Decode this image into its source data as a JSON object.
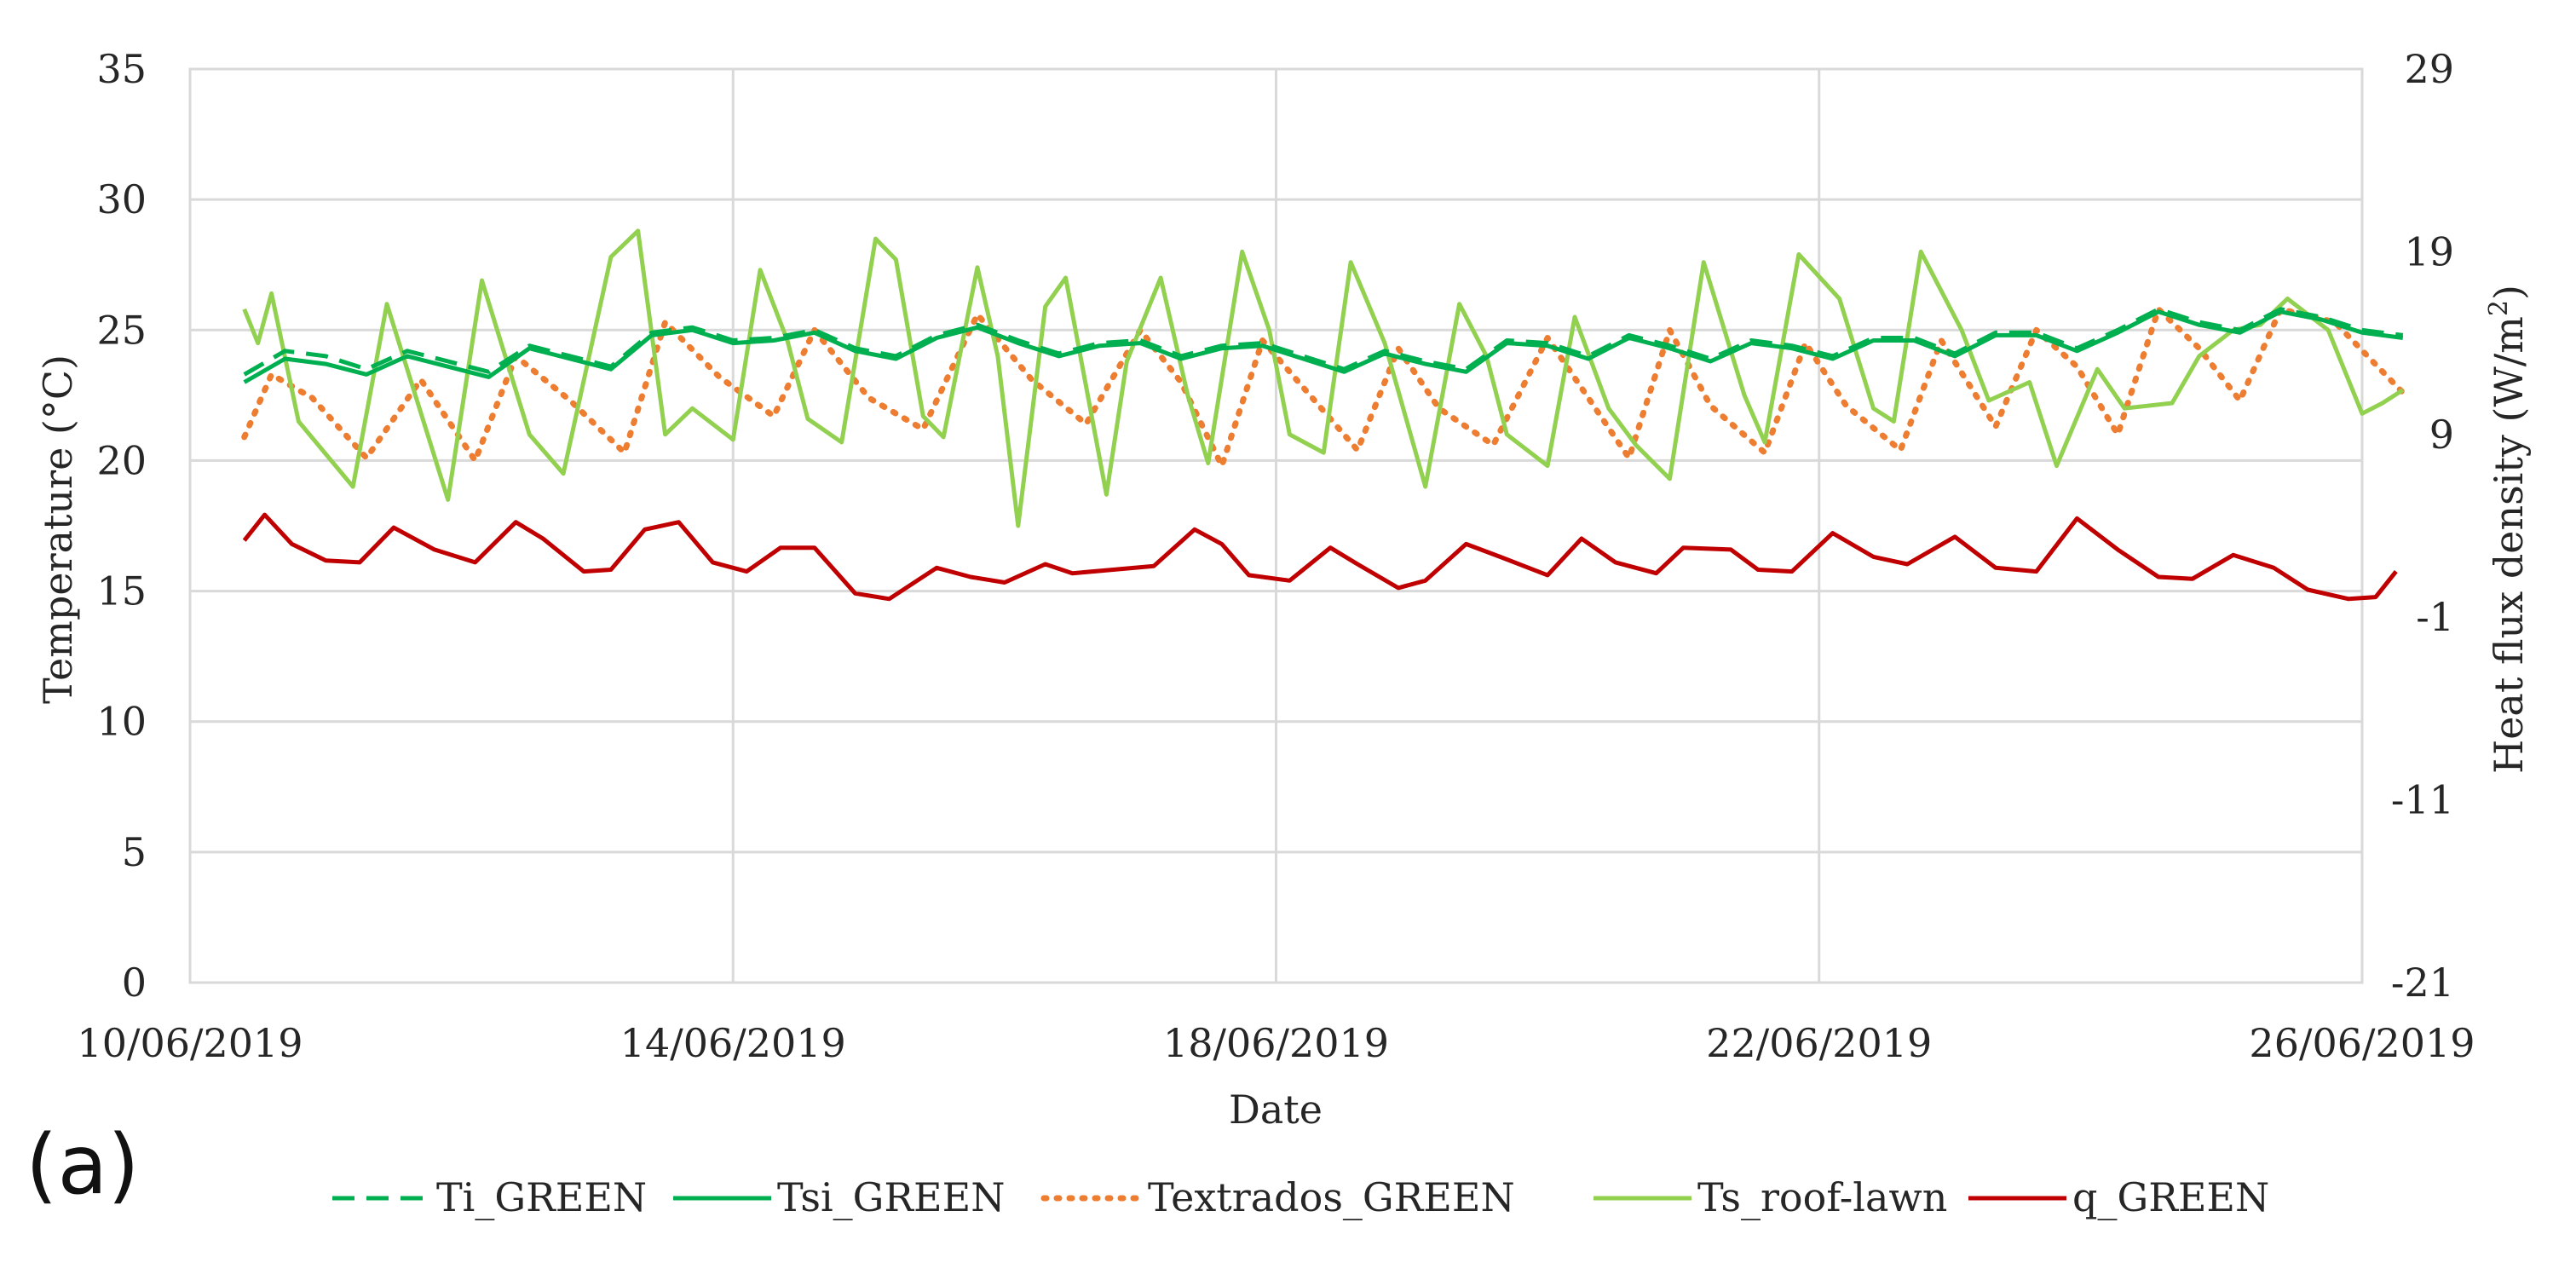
{
  "panel_label": "(a)",
  "chart_data": {
    "type": "line",
    "title": "",
    "xlabel": "Date",
    "ylabel": "Temperature (°C)",
    "y2label_main": "Heat flux density (W/m",
    "y2label_sup": "2",
    "y2label_end": ")",
    "x_range_days": [
      0,
      16
    ],
    "ylim": [
      0,
      35
    ],
    "y2lim": [
      -21,
      29
    ],
    "grid": true,
    "legend_position": "bottom",
    "x_ticks": [
      {
        "day": 0,
        "label": "10/06/2019"
      },
      {
        "day": 4,
        "label": "14/06/2019"
      },
      {
        "day": 8,
        "label": "18/06/2019"
      },
      {
        "day": 12,
        "label": "22/06/2019"
      },
      {
        "day": 16,
        "label": "26/06/2019"
      }
    ],
    "y_ticks": [
      0,
      5,
      10,
      15,
      20,
      25,
      30,
      35
    ],
    "y2_ticks": [
      -21,
      -11,
      -1,
      9,
      19,
      29
    ],
    "series": [
      {
        "name": "Ti_GREEN",
        "axis": "left",
        "color": "#00b050",
        "style": "dashed",
        "x": [
          0.4,
          0.7,
          1.0,
          1.3,
          1.6,
          1.9,
          2.2,
          2.5,
          2.8,
          3.1,
          3.4,
          3.7,
          4.0,
          4.3,
          4.6,
          4.9,
          5.2,
          5.5,
          5.8,
          6.1,
          6.4,
          6.7,
          7.0,
          7.3,
          7.6,
          7.9,
          8.2,
          8.5,
          8.8,
          9.1,
          9.4,
          9.7,
          10.0,
          10.3,
          10.6,
          10.9,
          11.2,
          11.5,
          11.8,
          12.1,
          12.4,
          12.7,
          13.0,
          13.3,
          13.6,
          13.9,
          14.2,
          14.5,
          14.8,
          15.1,
          15.4,
          15.7,
          16.0,
          16.3
        ],
        "values": [
          23.3,
          24.2,
          24.0,
          23.5,
          24.2,
          23.8,
          23.4,
          24.4,
          24.0,
          23.6,
          24.9,
          25.1,
          24.6,
          24.7,
          25.0,
          24.3,
          24.0,
          24.8,
          25.2,
          24.6,
          24.1,
          24.5,
          24.6,
          24.0,
          24.4,
          24.5,
          24.0,
          23.5,
          24.2,
          23.8,
          23.5,
          24.6,
          24.5,
          24.0,
          24.8,
          24.4,
          23.9,
          24.6,
          24.4,
          24.0,
          24.7,
          24.7,
          24.1,
          24.9,
          24.9,
          24.3,
          25.0,
          25.8,
          25.3,
          25.0,
          25.8,
          25.5,
          25.0,
          24.8
        ]
      },
      {
        "name": "Tsi_GREEN",
        "axis": "left",
        "color": "#00b050",
        "style": "solid",
        "x": [
          0.4,
          0.7,
          1.0,
          1.3,
          1.6,
          1.9,
          2.2,
          2.5,
          2.8,
          3.1,
          3.4,
          3.7,
          4.0,
          4.3,
          4.6,
          4.9,
          5.2,
          5.5,
          5.8,
          6.1,
          6.4,
          6.7,
          7.0,
          7.3,
          7.6,
          7.9,
          8.2,
          8.5,
          8.8,
          9.1,
          9.4,
          9.7,
          10.0,
          10.3,
          10.6,
          10.9,
          11.2,
          11.5,
          11.8,
          12.1,
          12.4,
          12.7,
          13.0,
          13.3,
          13.6,
          13.9,
          14.2,
          14.5,
          14.8,
          15.1,
          15.4,
          15.7,
          16.0,
          16.3
        ],
        "values": [
          23.0,
          23.9,
          23.7,
          23.3,
          24.0,
          23.6,
          23.2,
          24.3,
          23.9,
          23.5,
          24.8,
          25.0,
          24.5,
          24.6,
          24.9,
          24.2,
          23.9,
          24.7,
          25.1,
          24.5,
          24.0,
          24.4,
          24.5,
          23.9,
          24.3,
          24.4,
          23.9,
          23.4,
          24.1,
          23.7,
          23.4,
          24.5,
          24.4,
          23.9,
          24.7,
          24.3,
          23.8,
          24.5,
          24.3,
          23.9,
          24.6,
          24.6,
          24.0,
          24.8,
          24.8,
          24.2,
          24.9,
          25.7,
          25.2,
          24.9,
          25.7,
          25.4,
          24.9,
          24.7
        ]
      },
      {
        "name": "Textrados_GREEN",
        "axis": "left",
        "color": "#ed7d31",
        "style": "dotted",
        "x": [
          0.4,
          0.6,
          0.9,
          1.3,
          1.7,
          2.1,
          2.4,
          2.8,
          3.2,
          3.5,
          3.9,
          4.3,
          4.6,
          5.0,
          5.4,
          5.8,
          6.2,
          6.6,
          7.0,
          7.3,
          7.6,
          7.9,
          8.2,
          8.6,
          8.9,
          9.2,
          9.6,
          10.0,
          10.3,
          10.6,
          10.9,
          11.2,
          11.6,
          11.9,
          12.2,
          12.6,
          12.9,
          13.3,
          13.6,
          13.9,
          14.2,
          14.5,
          14.8,
          15.1,
          15.4,
          15.8,
          16.3
        ],
        "values": [
          20.9,
          23.3,
          22.4,
          20.1,
          23.1,
          20.0,
          24.0,
          22.3,
          20.3,
          25.3,
          23.2,
          21.7,
          25.0,
          22.4,
          21.2,
          25.6,
          23.1,
          21.4,
          25.0,
          23.0,
          19.8,
          24.6,
          22.8,
          20.4,
          24.3,
          22.0,
          20.6,
          24.7,
          22.4,
          20.1,
          25.0,
          22.1,
          20.3,
          24.5,
          22.1,
          20.4,
          24.6,
          21.3,
          25.0,
          23.6,
          21.0,
          25.8,
          24.3,
          22.3,
          25.8,
          25.3,
          22.6
        ]
      },
      {
        "name": "Ts_roof-lawn",
        "axis": "left",
        "color": "#92d050",
        "style": "solid",
        "x": [
          0.4,
          0.5,
          0.6,
          0.8,
          1.2,
          1.45,
          1.6,
          1.9,
          2.15,
          2.5,
          2.75,
          3.1,
          3.3,
          3.5,
          3.7,
          4.0,
          4.2,
          4.4,
          4.55,
          4.8,
          5.05,
          5.2,
          5.4,
          5.55,
          5.8,
          5.95,
          6.1,
          6.3,
          6.45,
          6.75,
          6.9,
          7.15,
          7.35,
          7.5,
          7.75,
          7.95,
          8.1,
          8.35,
          8.55,
          8.8,
          9.1,
          9.35,
          9.55,
          9.7,
          10.0,
          10.2,
          10.45,
          10.65,
          10.9,
          11.15,
          11.45,
          11.6,
          11.85,
          12.15,
          12.4,
          12.55,
          12.75,
          13.05,
          13.25,
          13.55,
          13.75,
          14.05,
          14.25,
          14.6,
          14.8,
          15.05,
          15.25,
          15.45,
          15.75,
          16.0,
          16.15,
          16.3
        ],
        "values": [
          25.8,
          24.5,
          26.4,
          21.5,
          19.0,
          26.0,
          23.5,
          18.5,
          26.9,
          21.0,
          19.5,
          27.8,
          28.8,
          21.0,
          22.0,
          20.8,
          27.3,
          24.6,
          21.6,
          20.7,
          28.5,
          27.7,
          21.7,
          20.9,
          27.4,
          24.0,
          17.5,
          25.9,
          27.0,
          18.7,
          23.8,
          27.0,
          22.5,
          19.9,
          28.0,
          25.0,
          21.0,
          20.3,
          27.6,
          24.5,
          19.0,
          26.0,
          24.0,
          21.0,
          19.8,
          25.5,
          22.0,
          20.6,
          19.3,
          27.6,
          22.5,
          20.7,
          27.9,
          26.2,
          22.0,
          21.5,
          28.0,
          25.0,
          22.3,
          23.0,
          19.8,
          23.5,
          22.0,
          22.2,
          24.0,
          25.0,
          25.2,
          26.2,
          25.0,
          21.8,
          22.2,
          22.7
        ]
      },
      {
        "name": "q_GREEN",
        "axis": "right",
        "color": "#c00000",
        "style": "solid",
        "x": [
          0.4,
          0.55,
          0.75,
          1.0,
          1.25,
          1.5,
          1.8,
          2.1,
          2.4,
          2.6,
          2.9,
          3.1,
          3.35,
          3.6,
          3.85,
          4.1,
          4.35,
          4.6,
          4.9,
          5.15,
          5.5,
          5.75,
          6.0,
          6.3,
          6.5,
          6.8,
          7.1,
          7.4,
          7.6,
          7.8,
          8.1,
          8.4,
          8.6,
          8.9,
          9.1,
          9.4,
          9.65,
          10.0,
          10.25,
          10.5,
          10.8,
          11.0,
          11.35,
          11.55,
          11.8,
          12.1,
          12.4,
          12.65,
          13.0,
          13.3,
          13.6,
          13.9,
          14.2,
          14.5,
          14.75,
          15.05,
          15.35,
          15.6,
          15.9,
          16.1,
          16.25
        ],
        "values": [
          3.2,
          4.6,
          3.0,
          2.1,
          2.0,
          3.9,
          2.7,
          2.0,
          4.2,
          3.3,
          1.5,
          1.6,
          3.8,
          4.2,
          2.0,
          1.5,
          2.8,
          2.8,
          0.3,
          0.0,
          1.7,
          1.2,
          0.9,
          1.9,
          1.4,
          1.6,
          1.8,
          3.8,
          3.0,
          1.3,
          1.0,
          2.8,
          1.9,
          0.6,
          1.0,
          3.0,
          2.3,
          1.3,
          3.3,
          2.0,
          1.4,
          2.8,
          2.7,
          1.6,
          1.5,
          3.6,
          2.3,
          1.9,
          3.4,
          1.7,
          1.5,
          4.4,
          2.7,
          1.2,
          1.1,
          2.4,
          1.7,
          0.5,
          0.0,
          0.1,
          1.5
        ]
      }
    ]
  }
}
